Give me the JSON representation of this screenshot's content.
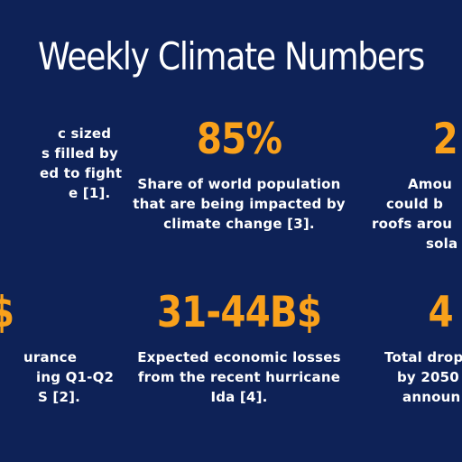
{
  "title": "Weekly Climate Numbers",
  "stats": {
    "top_left": {
      "number": "",
      "desc_lines": [
        "c sized",
        "s filled by",
        "ed to fight",
        "e [1]."
      ]
    },
    "top_center": {
      "number": "85%",
      "desc_lines": [
        "Share of world population",
        "that are being impacted by",
        "climate change [3]."
      ]
    },
    "top_right": {
      "number": "2",
      "desc_lines": [
        "Amou",
        "could b",
        "roofs arou",
        "sola"
      ]
    },
    "bottom_left": {
      "number": "$",
      "desc_lines": [
        "urance",
        "ing Q1-Q2",
        "S [2]."
      ]
    },
    "bottom_center": {
      "number": "31-44B$",
      "desc_lines": [
        "Expected economic losses",
        "from the recent hurricane",
        "Ida [4]."
      ]
    },
    "bottom_right": {
      "number": "4",
      "desc_lines": [
        "Total drop",
        "by 2050",
        "announ"
      ]
    }
  },
  "colors": {
    "background": "#0e2257",
    "accent": "#f9a11b",
    "text": "#ffffff"
  }
}
